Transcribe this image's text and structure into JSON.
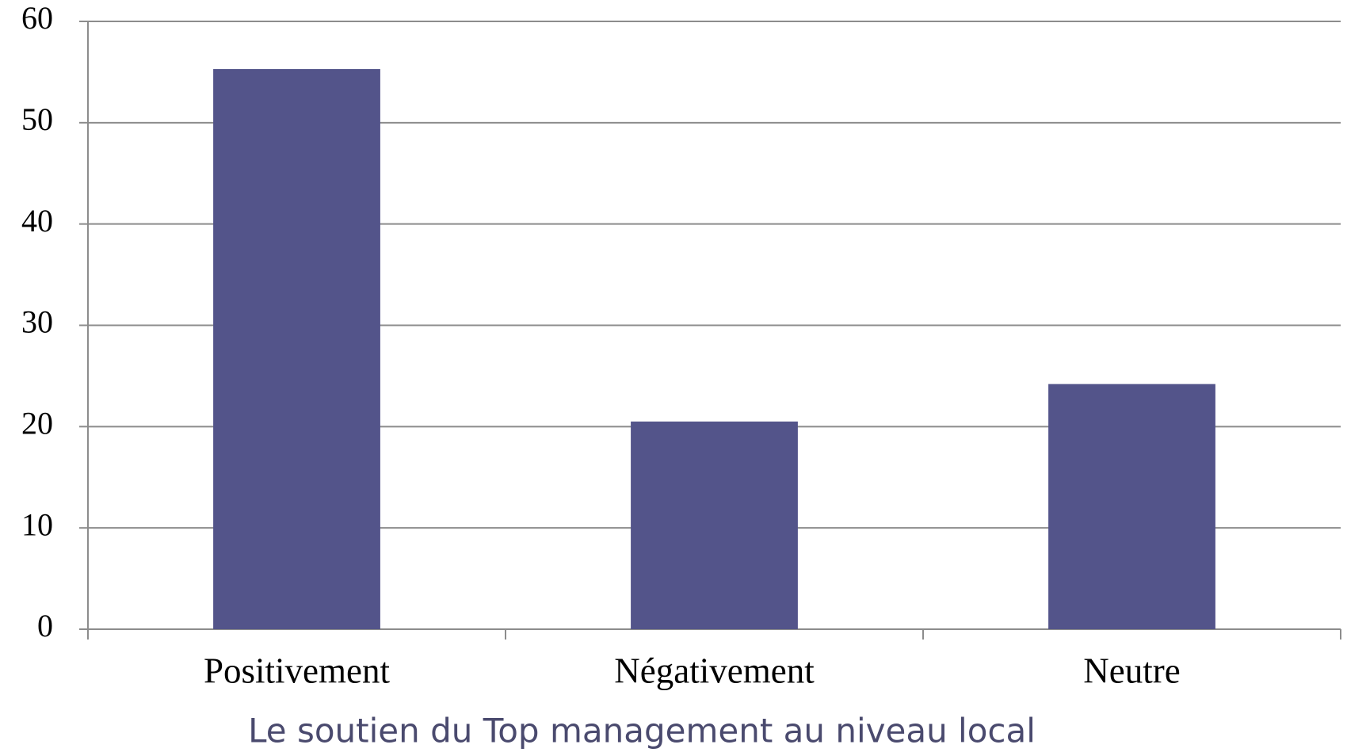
{
  "chart_data": {
    "type": "bar",
    "categories": [
      "Positivement",
      "Négativement",
      "Neutre"
    ],
    "values": [
      55.3,
      20.5,
      24.2
    ],
    "color": "#53548a",
    "ylim": [
      0,
      60
    ],
    "yticks": [
      0,
      10,
      20,
      30,
      40,
      50,
      60
    ],
    "grid": true,
    "x_label": "Le soutien du Top management au niveau local"
  }
}
